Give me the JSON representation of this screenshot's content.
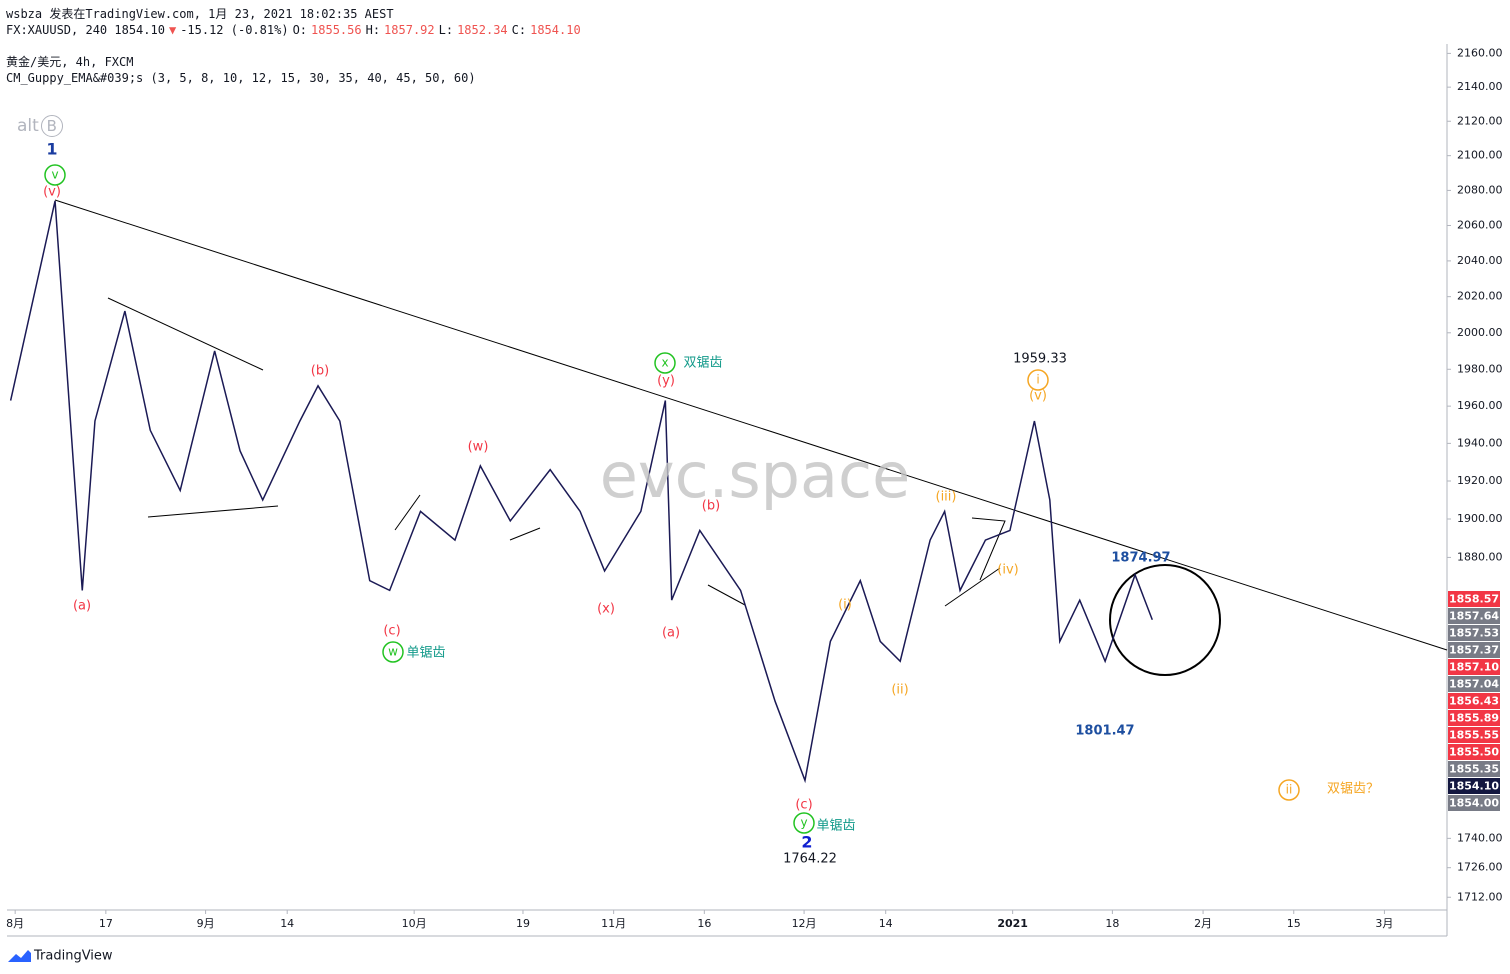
{
  "header": {
    "publisher": "wsbza 发表在TradingView.com, 1月 23, 2021 18:02:35 AEST",
    "quote": [
      {
        "text": "FX:XAUUSD, 240 1854.10",
        "color": "#131722"
      },
      {
        "text": "▼",
        "color": "#ef5350"
      },
      {
        "text": "-15.12 (-0.81%)",
        "color": "#131722"
      },
      {
        "text": "O:",
        "color": "#131722"
      },
      {
        "text": "1855.56",
        "color": "#ef5350"
      },
      {
        "text": "H:",
        "color": "#131722"
      },
      {
        "text": "1857.92",
        "color": "#ef5350"
      },
      {
        "text": "L:",
        "color": "#131722"
      },
      {
        "text": "1852.34",
        "color": "#ef5350"
      },
      {
        "text": "C:",
        "color": "#131722"
      },
      {
        "text": "1854.10",
        "color": "#ef5350"
      }
    ],
    "symbol": "黄金/美元, 4h, FXCM",
    "indicator": "CM_Guppy_EMA&#039;s (3, 5, 8, 10, 12, 15, 30, 35, 40, 45, 50, 60)",
    "alt": "alt",
    "alt_badge": "B"
  },
  "chart_data": {
    "type": "line",
    "log_scale": true,
    "color": "#1b1a55",
    "x": [
      -0.5,
      4.4,
      7.4,
      8.8,
      12.1,
      14.9,
      18.2,
      22,
      24.8,
      27.3,
      31.4,
      33.4,
      35.8,
      39.1,
      41.3,
      44.7,
      48.5,
      51.3,
      54.6,
      59,
      62.3,
      65,
      69,
      71.7,
      72.4,
      75.5,
      80,
      83.8,
      87.1,
      89.9,
      93.2,
      95.4,
      97.6,
      100.9,
      102.5,
      104.2,
      107,
      109.7,
      112.4,
      114.1,
      115.2,
      117.4,
      120.2,
      123.5,
      125.4
    ],
    "values": [
      1963,
      2074,
      1863,
      1952,
      2012,
      1947,
      1915,
      1990,
      1936,
      1910,
      1952,
      1971,
      1952,
      1868,
      1863,
      1904,
      1889,
      1928,
      1899,
      1926,
      1904,
      1873,
      1904,
      1963,
      1858,
      1894,
      1863,
      1807,
      1768,
      1837,
      1868,
      1837,
      1827,
      1889,
      1904,
      1863,
      1889,
      1894,
      1952,
      1910,
      1837,
      1858,
      1827,
      1871,
      1848
    ],
    "xlim": [
      -0.9,
      157.9
    ],
    "ylim": [
      1706,
      2165
    ],
    "xticks": [
      {
        "value": 0,
        "label": "8月"
      },
      {
        "value": 10,
        "label": "17"
      },
      {
        "value": 21,
        "label": "9月"
      },
      {
        "value": 30,
        "label": "14"
      },
      {
        "value": 44,
        "label": "10月"
      },
      {
        "value": 56,
        "label": "19"
      },
      {
        "value": 66,
        "label": "11月"
      },
      {
        "value": 76,
        "label": "16"
      },
      {
        "value": 87,
        "label": "12月"
      },
      {
        "value": 96,
        "label": "14"
      },
      {
        "value": 110,
        "label": "2021"
      },
      {
        "value": 121,
        "label": "18"
      },
      {
        "value": 131,
        "label": "2月"
      },
      {
        "value": 141,
        "label": "15"
      },
      {
        "value": 151,
        "label": "3月"
      }
    ],
    "yticks": [
      {
        "value": 2160,
        "label": "2160.00"
      },
      {
        "value": 2140,
        "label": "2140.00"
      },
      {
        "value": 2120,
        "label": "2120.00"
      },
      {
        "value": 2100,
        "label": "2100.00"
      },
      {
        "value": 2080,
        "label": "2080.00"
      },
      {
        "value": 2060,
        "label": "2060.00"
      },
      {
        "value": 2040,
        "label": "2040.00"
      },
      {
        "value": 2020,
        "label": "2020.00"
      },
      {
        "value": 2000,
        "label": "2000.00"
      },
      {
        "value": 1980,
        "label": "1980.00"
      },
      {
        "value": 1960,
        "label": "1960.00"
      },
      {
        "value": 1940,
        "label": "1940.00"
      },
      {
        "value": 1920,
        "label": "1920.00"
      },
      {
        "value": 1900,
        "label": "1900.00"
      },
      {
        "value": 1880,
        "label": "1880.00"
      },
      {
        "value": 1740,
        "label": "1740.00"
      },
      {
        "value": 1726,
        "label": "1726.00"
      },
      {
        "value": 1712,
        "label": "1712.00"
      }
    ]
  },
  "price_labels": [
    {
      "text": "1858.57",
      "color": "#f23645"
    },
    {
      "text": "1857.64",
      "color": "#787b86"
    },
    {
      "text": "1857.53",
      "color": "#787b86"
    },
    {
      "text": "1857.37",
      "color": "#787b86"
    },
    {
      "text": "1857.10",
      "color": "#f23645"
    },
    {
      "text": "1857.04",
      "color": "#787b86"
    },
    {
      "text": "1856.43",
      "color": "#f23645"
    },
    {
      "text": "1855.89",
      "color": "#f23645"
    },
    {
      "text": "1855.55",
      "color": "#f23645"
    },
    {
      "text": "1855.50",
      "color": "#f23645"
    },
    {
      "text": "1855.35",
      "color": "#787b86"
    },
    {
      "text": "1854.10",
      "color": "#131740"
    },
    {
      "text": "1854.00",
      "color": "#787b86"
    }
  ],
  "annotations": [
    {
      "text": "1",
      "color": "#1a3ca0"
    },
    {
      "text": "v",
      "color": "#22c322",
      "circled": true
    },
    {
      "text": "(v)",
      "color": "#f23645"
    },
    {
      "text": "(a)",
      "color": "#f23645"
    },
    {
      "text": "(b)",
      "color": "#f23645"
    },
    {
      "text": "(c)",
      "color": "#f23645"
    },
    {
      "text": "w",
      "color": "#22c322",
      "circled": true
    },
    {
      "text": "单锯齿",
      "color": "#139a8a"
    },
    {
      "text": "(w)",
      "color": "#f23645"
    },
    {
      "text": "(x)",
      "color": "#f23645"
    },
    {
      "text": "x",
      "color": "#22c322",
      "circled": true
    },
    {
      "text": "双锯齿",
      "color": "#139a8a"
    },
    {
      "text": "(y)",
      "color": "#f23645"
    },
    {
      "text": "(a)",
      "color": "#f23645"
    },
    {
      "text": "(b)",
      "color": "#f23645"
    },
    {
      "text": "(c)",
      "color": "#f23645"
    },
    {
      "text": "y",
      "color": "#22c322",
      "circled": true
    },
    {
      "text": "单锯齿",
      "color": "#139a8a"
    },
    {
      "text": "2",
      "color": "#1020d0"
    },
    {
      "text": "1764.22",
      "color": "#131722"
    },
    {
      "text": "(i)",
      "color": "#f5a623"
    },
    {
      "text": "(ii)",
      "color": "#f5a623"
    },
    {
      "text": "(iii)",
      "color": "#f5a623"
    },
    {
      "text": "(iv)",
      "color": "#f5a623"
    },
    {
      "text": "1959.33",
      "color": "#131722"
    },
    {
      "text": "i",
      "color": "#f5a623",
      "circled": true
    },
    {
      "text": "(v)",
      "color": "#f5a623"
    },
    {
      "text": "1874.97",
      "color": "#1e4fa0"
    },
    {
      "text": "1801.47",
      "color": "#1e4fa0"
    },
    {
      "text": "ii",
      "color": "#f5a623",
      "circled": true
    },
    {
      "text": "双锯齿？",
      "color": "#f5a623"
    },
    {
      "text": "evc.space",
      "color": "#c4c4c4",
      "watermark": true
    }
  ],
  "footer": "TradingView"
}
